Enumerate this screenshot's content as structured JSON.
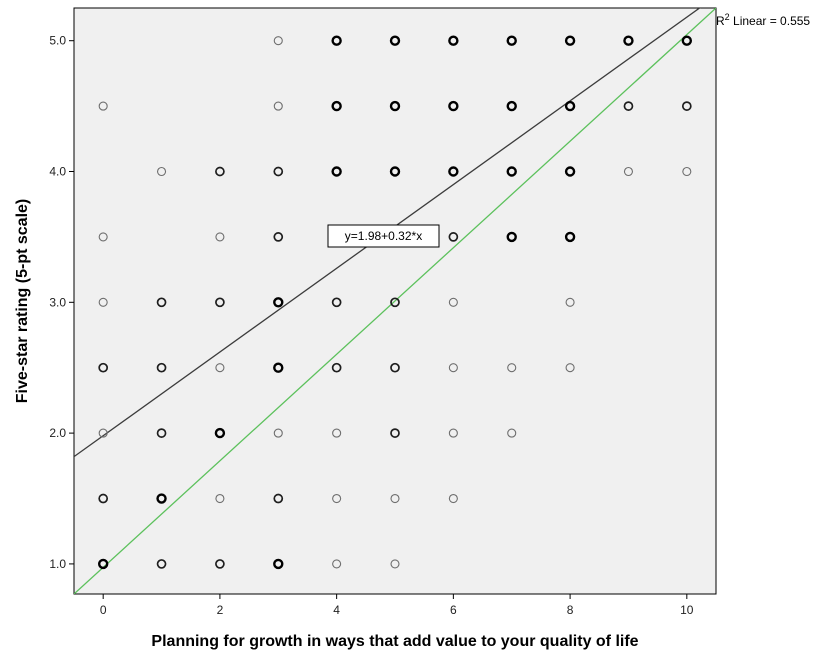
{
  "chart_data": {
    "type": "scatter",
    "title": "",
    "xlabel": "Planning for growth in ways that add value to your quality of life",
    "ylabel": "Five-star rating (5-pt scale)",
    "xlim": [
      -0.5,
      10.5
    ],
    "ylim": [
      0.77,
      5.25
    ],
    "x_ticks": [
      "0",
      "2",
      "4",
      "6",
      "8",
      "10"
    ],
    "y_ticks": [
      "1.0",
      "2.0",
      "3.0",
      "4.0",
      "5.0"
    ],
    "grid": false,
    "background_color": "#f0f0f0",
    "fit_line": {
      "label": "y=1.98+0.32*x",
      "intercept": 1.98,
      "slope": 0.32,
      "color": "#3c3c3c"
    },
    "reference_line": {
      "type": "identity-like",
      "color": "#5cc15c",
      "from": [
        -0.5,
        0.77
      ],
      "to": [
        10.5,
        5.25
      ]
    },
    "r2_label": {
      "prefix": "R",
      "sup": "2",
      "text": " Linear = 0.555"
    },
    "points": [
      {
        "x": 0,
        "y": 4.5,
        "w": 1
      },
      {
        "x": 0,
        "y": 3.5,
        "w": 1
      },
      {
        "x": 0,
        "y": 3.0,
        "w": 1
      },
      {
        "x": 0,
        "y": 2.5,
        "w": 2
      },
      {
        "x": 0,
        "y": 2.0,
        "w": 1
      },
      {
        "x": 0,
        "y": 1.5,
        "w": 2
      },
      {
        "x": 0,
        "y": 1.0,
        "w": 3
      },
      {
        "x": 1,
        "y": 4.0,
        "w": 1
      },
      {
        "x": 1,
        "y": 3.0,
        "w": 2
      },
      {
        "x": 1,
        "y": 2.5,
        "w": 2
      },
      {
        "x": 1,
        "y": 2.0,
        "w": 2
      },
      {
        "x": 1,
        "y": 1.5,
        "w": 3
      },
      {
        "x": 1,
        "y": 1.0,
        "w": 2
      },
      {
        "x": 2,
        "y": 4.0,
        "w": 2
      },
      {
        "x": 2,
        "y": 3.5,
        "w": 1
      },
      {
        "x": 2,
        "y": 3.0,
        "w": 2
      },
      {
        "x": 2,
        "y": 2.5,
        "w": 1
      },
      {
        "x": 2,
        "y": 2.0,
        "w": 3
      },
      {
        "x": 2,
        "y": 1.5,
        "w": 1
      },
      {
        "x": 2,
        "y": 1.0,
        "w": 2
      },
      {
        "x": 3,
        "y": 5.0,
        "w": 1
      },
      {
        "x": 3,
        "y": 4.5,
        "w": 1
      },
      {
        "x": 3,
        "y": 4.0,
        "w": 2
      },
      {
        "x": 3,
        "y": 3.5,
        "w": 2
      },
      {
        "x": 3,
        "y": 3.0,
        "w": 3
      },
      {
        "x": 3,
        "y": 2.5,
        "w": 3
      },
      {
        "x": 3,
        "y": 2.0,
        "w": 1
      },
      {
        "x": 3,
        "y": 1.5,
        "w": 2
      },
      {
        "x": 3,
        "y": 1.0,
        "w": 3
      },
      {
        "x": 4,
        "y": 5.0,
        "w": 3
      },
      {
        "x": 4,
        "y": 4.5,
        "w": 3
      },
      {
        "x": 4,
        "y": 4.0,
        "w": 3
      },
      {
        "x": 4,
        "y": 3.5,
        "w": 2
      },
      {
        "x": 4,
        "y": 3.0,
        "w": 2
      },
      {
        "x": 4,
        "y": 2.5,
        "w": 2
      },
      {
        "x": 4,
        "y": 2.0,
        "w": 1
      },
      {
        "x": 4,
        "y": 1.5,
        "w": 1
      },
      {
        "x": 4,
        "y": 1.0,
        "w": 1
      },
      {
        "x": 5,
        "y": 5.0,
        "w": 3
      },
      {
        "x": 5,
        "y": 4.5,
        "w": 3
      },
      {
        "x": 5,
        "y": 4.0,
        "w": 3
      },
      {
        "x": 5,
        "y": 3.0,
        "w": 2
      },
      {
        "x": 5,
        "y": 2.5,
        "w": 2
      },
      {
        "x": 5,
        "y": 2.0,
        "w": 2
      },
      {
        "x": 5,
        "y": 1.5,
        "w": 1
      },
      {
        "x": 5,
        "y": 1.0,
        "w": 1
      },
      {
        "x": 6,
        "y": 5.0,
        "w": 3
      },
      {
        "x": 6,
        "y": 4.5,
        "w": 3
      },
      {
        "x": 6,
        "y": 4.0,
        "w": 3
      },
      {
        "x": 6,
        "y": 3.5,
        "w": 2
      },
      {
        "x": 6,
        "y": 3.0,
        "w": 1
      },
      {
        "x": 6,
        "y": 2.5,
        "w": 1
      },
      {
        "x": 6,
        "y": 2.0,
        "w": 1
      },
      {
        "x": 6,
        "y": 1.5,
        "w": 1
      },
      {
        "x": 7,
        "y": 5.0,
        "w": 3
      },
      {
        "x": 7,
        "y": 4.5,
        "w": 3
      },
      {
        "x": 7,
        "y": 4.0,
        "w": 3
      },
      {
        "x": 7,
        "y": 3.5,
        "w": 3
      },
      {
        "x": 7,
        "y": 2.5,
        "w": 1
      },
      {
        "x": 7,
        "y": 2.0,
        "w": 1
      },
      {
        "x": 8,
        "y": 5.0,
        "w": 3
      },
      {
        "x": 8,
        "y": 4.5,
        "w": 3
      },
      {
        "x": 8,
        "y": 4.0,
        "w": 3
      },
      {
        "x": 8,
        "y": 3.5,
        "w": 3
      },
      {
        "x": 8,
        "y": 3.0,
        "w": 1
      },
      {
        "x": 8,
        "y": 2.5,
        "w": 1
      },
      {
        "x": 9,
        "y": 5.0,
        "w": 3
      },
      {
        "x": 9,
        "y": 4.5,
        "w": 2
      },
      {
        "x": 9,
        "y": 4.0,
        "w": 1
      },
      {
        "x": 10,
        "y": 5.0,
        "w": 3
      },
      {
        "x": 10,
        "y": 4.5,
        "w": 2
      },
      {
        "x": 10,
        "y": 4.0,
        "w": 1
      }
    ]
  }
}
